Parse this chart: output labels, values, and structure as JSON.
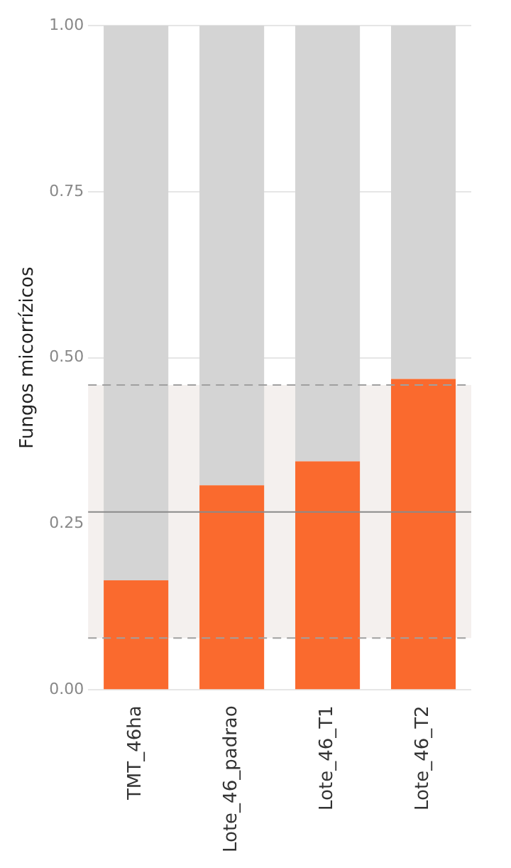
{
  "chart_data": {
    "type": "bar",
    "stacked": true,
    "ylabel": "Fungos micorrízicos",
    "categories": [
      "TMT_46ha",
      "Lote_46_padrao",
      "Lote_46_T1",
      "Lote_46_T2"
    ],
    "series": [
      {
        "color": "#fa6a2e",
        "values": [
          0.165,
          0.308,
          0.344,
          0.468
        ]
      },
      {
        "color": "#d4d4d4",
        "values": [
          0.835,
          0.692,
          0.656,
          0.532
        ]
      }
    ],
    "ylim": [
      0,
      1
    ],
    "yticks": [
      {
        "value": 0,
        "label": "0.00"
      },
      {
        "value": 0.25,
        "label": "0.25"
      },
      {
        "value": 0.5,
        "label": "0.50"
      },
      {
        "value": 0.75,
        "label": "0.75"
      },
      {
        "value": 1,
        "label": "1.00"
      }
    ],
    "grid": "y",
    "bands": [
      {
        "axis": "y",
        "from": 0.078,
        "to": 0.459,
        "color": "#f4f0ee"
      }
    ],
    "ref_lines": [
      {
        "axis": "y",
        "value": 0.268,
        "color": "#8a8a8a",
        "line_style": "solid"
      },
      {
        "axis": "y",
        "value": 0.459,
        "color": "#a0a0a0",
        "line_style": "dashed"
      },
      {
        "axis": "y",
        "value": 0.078,
        "color": "#a0a0a0",
        "line_style": "dashed"
      }
    ]
  }
}
